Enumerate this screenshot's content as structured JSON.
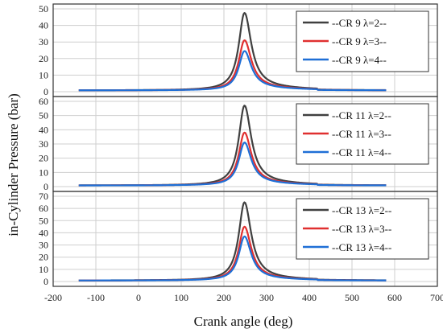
{
  "chart_data": {
    "type": "line",
    "xlabel": "Crank angle (deg)",
    "ylabel": "in-Cylinder Pressure (bar)",
    "xlim": [
      -200,
      700
    ],
    "xticks": [
      -200,
      -100,
      0,
      100,
      200,
      300,
      400,
      500,
      600,
      700
    ],
    "grid": true,
    "legend_position": "top-right",
    "panels": [
      {
        "ylim": [
          0,
          50
        ],
        "yticks": [
          0,
          10,
          20,
          30,
          40,
          50
        ],
        "series": [
          {
            "name": "--CR 9 λ=2--",
            "color": "#404040",
            "peak": 47.5,
            "tail": 1.2
          },
          {
            "name": "--CR 9 λ=3--",
            "color": "#e03030",
            "peak": 31.0,
            "tail": 1.0
          },
          {
            "name": "--CR 9 λ=4--",
            "color": "#1f6fd6",
            "peak": 24.5,
            "tail": 0.9
          }
        ]
      },
      {
        "ylim": [
          0,
          60
        ],
        "yticks": [
          0,
          10,
          20,
          30,
          40,
          50,
          60
        ],
        "series": [
          {
            "name": "--CR 11 λ=2--",
            "color": "#404040",
            "peak": 57.0,
            "tail": 1.2
          },
          {
            "name": "--CR 11 λ=3--",
            "color": "#e03030",
            "peak": 38.0,
            "tail": 1.0
          },
          {
            "name": "--CR 11 λ=4--",
            "color": "#1f6fd6",
            "peak": 31.0,
            "tail": 0.9
          }
        ]
      },
      {
        "ylim": [
          0,
          70
        ],
        "yticks": [
          0,
          10,
          20,
          30,
          40,
          50,
          60,
          70
        ],
        "series": [
          {
            "name": "--CR 13 λ=2--",
            "color": "#404040",
            "peak": 65.0,
            "tail": 1.2
          },
          {
            "name": "--CR 13 λ=3--",
            "color": "#e03030",
            "peak": 45.0,
            "tail": 1.0
          },
          {
            "name": "--CR 13 λ=4--",
            "color": "#1f6fd6",
            "peak": 37.0,
            "tail": 0.9
          }
        ]
      }
    ],
    "x_range_data": [
      -140,
      580
    ],
    "peak_angle": 248
  }
}
